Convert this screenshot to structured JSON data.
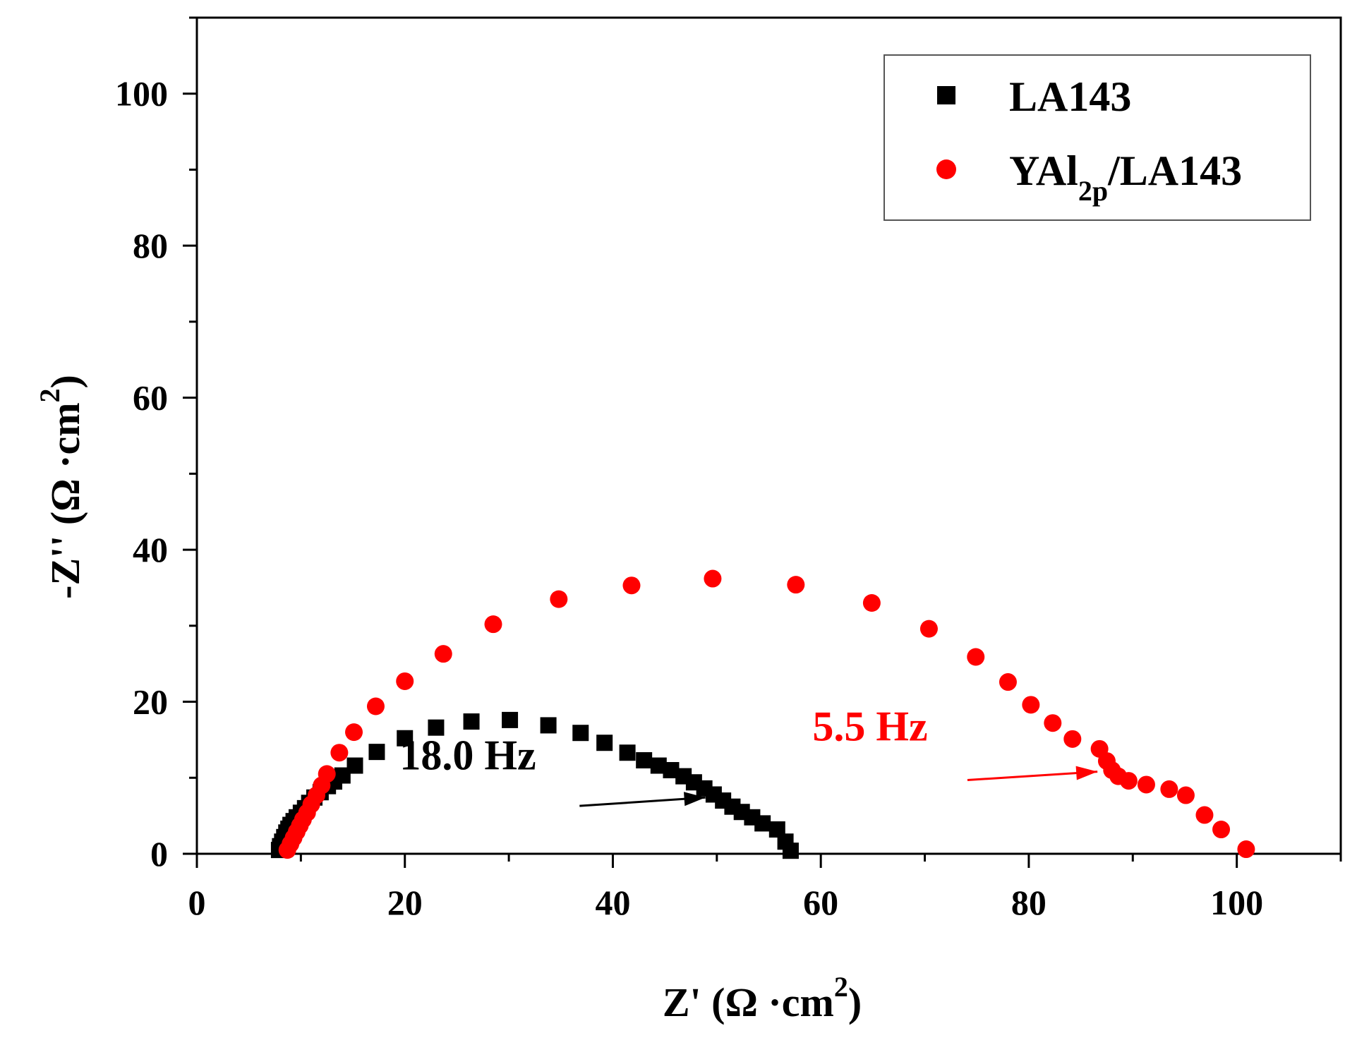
{
  "chart_data": {
    "type": "scatter",
    "title": "",
    "xlabel": "Z' (Ω ·cm2)",
    "ylabel": "-Z'' (Ω ·cm2)",
    "xlabel_text": "Z' (Ω ·cm",
    "ylabel_text": "-Z'' (Ω ·cm",
    "unit_superscript": "2",
    "xlim": [
      0,
      110
    ],
    "ylim": [
      0,
      110
    ],
    "xticks": [
      0,
      20,
      40,
      60,
      80,
      100
    ],
    "yticks": [
      0,
      20,
      40,
      60,
      80,
      100
    ],
    "grid": false,
    "legend_position": "top-right",
    "series": [
      {
        "name": "LA143",
        "legend_text": "LA143",
        "marker": "square",
        "color": "#000000",
        "points": [
          [
            7.9,
            0.5
          ],
          [
            8.0,
            1.0
          ],
          [
            8.2,
            1.6
          ],
          [
            8.4,
            2.2
          ],
          [
            8.6,
            2.8
          ],
          [
            8.8,
            3.3
          ],
          [
            9.0,
            3.8
          ],
          [
            9.3,
            4.3
          ],
          [
            9.6,
            4.8
          ],
          [
            10.0,
            5.4
          ],
          [
            10.4,
            6.0
          ],
          [
            10.8,
            6.7
          ],
          [
            11.3,
            7.4
          ],
          [
            11.9,
            8.1
          ],
          [
            12.6,
            8.9
          ],
          [
            13.2,
            9.5
          ],
          [
            14.0,
            10.3
          ],
          [
            15.2,
            11.6
          ],
          [
            17.3,
            13.4
          ],
          [
            20.0,
            15.2
          ],
          [
            23.0,
            16.6
          ],
          [
            26.4,
            17.4
          ],
          [
            30.1,
            17.6
          ],
          [
            33.8,
            16.9
          ],
          [
            36.9,
            15.9
          ],
          [
            39.2,
            14.6
          ],
          [
            41.4,
            13.3
          ],
          [
            43.0,
            12.3
          ],
          [
            44.4,
            11.6
          ],
          [
            45.6,
            11.0
          ],
          [
            46.8,
            10.2
          ],
          [
            47.8,
            9.4
          ],
          [
            48.8,
            8.6
          ],
          [
            49.7,
            7.8
          ],
          [
            50.6,
            7.0
          ],
          [
            51.5,
            6.2
          ],
          [
            52.4,
            5.5
          ],
          [
            53.4,
            4.8
          ],
          [
            54.4,
            4.0
          ],
          [
            55.8,
            3.2
          ],
          [
            56.6,
            1.6
          ],
          [
            57.1,
            0.4
          ]
        ]
      },
      {
        "name": "YAl2p/LA143",
        "legend_text": "YAl",
        "legend_sub": "2p",
        "legend_tail": "/LA143",
        "marker": "circle",
        "color": "#ff0000",
        "points": [
          [
            8.7,
            0.5
          ],
          [
            9.0,
            1.3
          ],
          [
            9.3,
            2.1
          ],
          [
            9.6,
            2.9
          ],
          [
            9.9,
            3.7
          ],
          [
            10.2,
            4.5
          ],
          [
            10.6,
            5.4
          ],
          [
            11.0,
            6.5
          ],
          [
            11.5,
            7.7
          ],
          [
            12.0,
            9.0
          ],
          [
            12.5,
            10.5
          ],
          [
            13.7,
            13.3
          ],
          [
            15.1,
            16.0
          ],
          [
            17.2,
            19.4
          ],
          [
            20.0,
            22.7
          ],
          [
            23.7,
            26.3
          ],
          [
            28.5,
            30.2
          ],
          [
            34.8,
            33.5
          ],
          [
            41.8,
            35.3
          ],
          [
            49.6,
            36.2
          ],
          [
            57.6,
            35.4
          ],
          [
            64.9,
            33.0
          ],
          [
            70.4,
            29.6
          ],
          [
            74.9,
            25.9
          ],
          [
            78.0,
            22.6
          ],
          [
            80.2,
            19.6
          ],
          [
            82.3,
            17.2
          ],
          [
            84.2,
            15.1
          ],
          [
            86.8,
            13.8
          ],
          [
            87.5,
            12.2
          ],
          [
            88.0,
            11.0
          ],
          [
            88.6,
            10.2
          ],
          [
            89.6,
            9.6
          ],
          [
            91.3,
            9.1
          ],
          [
            93.5,
            8.5
          ],
          [
            95.1,
            7.7
          ],
          [
            96.9,
            5.1
          ],
          [
            98.5,
            3.2
          ],
          [
            100.9,
            0.6
          ]
        ]
      }
    ],
    "annotations": [
      {
        "text": "18.0 Hz",
        "color": "#000000",
        "text_at": [
          19.5,
          11.1
        ],
        "arrow_from": [
          36.8,
          6.3
        ],
        "arrow_to": [
          48.9,
          7.4
        ]
      },
      {
        "text": "5.5 Hz",
        "color": "#ff0000",
        "text_at": [
          59.2,
          14.9
        ],
        "arrow_from": [
          74.1,
          9.7
        ],
        "arrow_to": [
          86.6,
          10.8
        ]
      }
    ]
  }
}
